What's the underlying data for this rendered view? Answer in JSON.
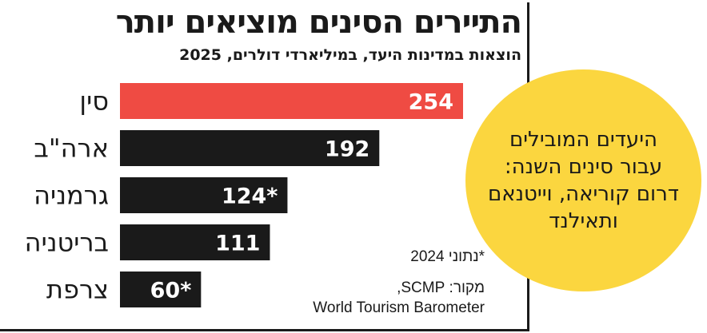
{
  "colors": {
    "highlight": "#ef4b43",
    "bar": "#1a1a1a",
    "callout": "#fbd63f"
  },
  "chart_data": {
    "type": "bar",
    "orientation": "horizontal",
    "title": "התיירים הסינים מוציאים יותר",
    "subtitle": "הוצאות במדינות היעד, במיליארדי דולרים, 2025",
    "categories": [
      "סין",
      "ארה\"ב",
      "גרמניה",
      "בריטניה",
      "צרפת"
    ],
    "values": [
      254,
      192,
      124,
      111,
      60
    ],
    "value_labels": [
      "254",
      "192",
      "124*",
      "111",
      "60*"
    ],
    "highlight_index": 0,
    "xlim": [
      0,
      254
    ],
    "grid": false,
    "note": "*נתוני 2024",
    "source": [
      "מקור: SCMP,",
      "World Tourism Barometer"
    ]
  },
  "callout": {
    "text": "היעדים המובילים עבור סינים השנה: דרום קוריאה, וייטנאם ותאילנד"
  }
}
